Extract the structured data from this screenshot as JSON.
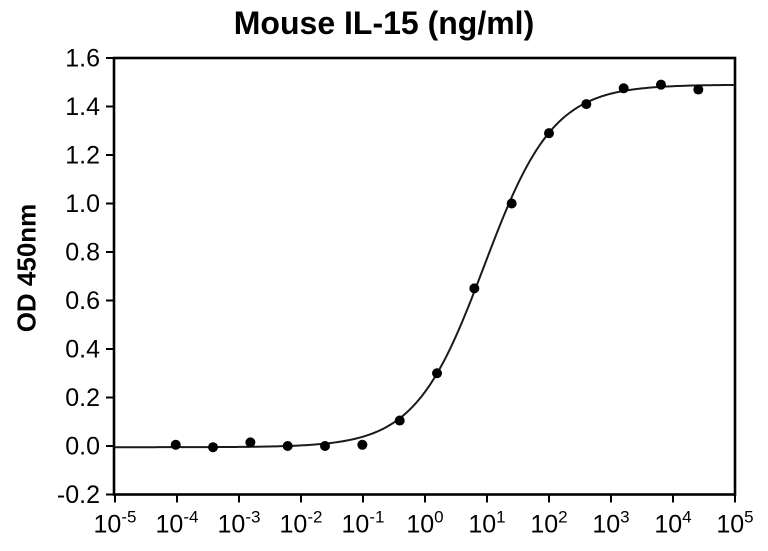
{
  "figure": {
    "background": "#ffffff"
  },
  "chart_data": {
    "type": "scatter",
    "title": "Mouse IL-15 (ng/ml)",
    "xlabel": "",
    "ylabel": "OD 450nm",
    "x_scale": "log10",
    "x_tick_exponents": [
      -5,
      -4,
      -3,
      -2,
      -1,
      0,
      1,
      2,
      3,
      4,
      5
    ],
    "xlim": [
      1e-05,
      100000
    ],
    "y_ticks": [
      -0.2,
      0.0,
      0.2,
      0.4,
      0.6,
      0.8,
      1.0,
      1.2,
      1.4,
      1.6
    ],
    "ylim": [
      -0.2,
      1.6
    ],
    "grid": false,
    "frame": "full-box",
    "legend": "none",
    "points": [
      {
        "x": 9.54e-05,
        "y": 0.005
      },
      {
        "x": 0.000381,
        "y": -0.005
      },
      {
        "x": 0.001526,
        "y": 0.015
      },
      {
        "x": 0.0061,
        "y": 0.0
      },
      {
        "x": 0.0244,
        "y": 0.0
      },
      {
        "x": 0.0977,
        "y": 0.005
      },
      {
        "x": 0.391,
        "y": 0.105
      },
      {
        "x": 1.5625,
        "y": 0.3
      },
      {
        "x": 6.25,
        "y": 0.65
      },
      {
        "x": 25,
        "y": 1.0
      },
      {
        "x": 100,
        "y": 1.29
      },
      {
        "x": 400,
        "y": 1.41
      },
      {
        "x": 1600,
        "y": 1.475
      },
      {
        "x": 6400,
        "y": 1.49
      },
      {
        "x": 25600,
        "y": 1.47
      }
    ],
    "fit_curve": {
      "model": "4PL",
      "bottom": -0.005,
      "top": 1.49,
      "ec50": 9,
      "hill": 0.78
    },
    "colors": {
      "marker": "#000000",
      "curve": "#1a1a1a",
      "axis": "#000000",
      "text": "#000000",
      "background": "#ffffff"
    },
    "marker": {
      "shape": "circle",
      "radius_px": 5
    }
  }
}
